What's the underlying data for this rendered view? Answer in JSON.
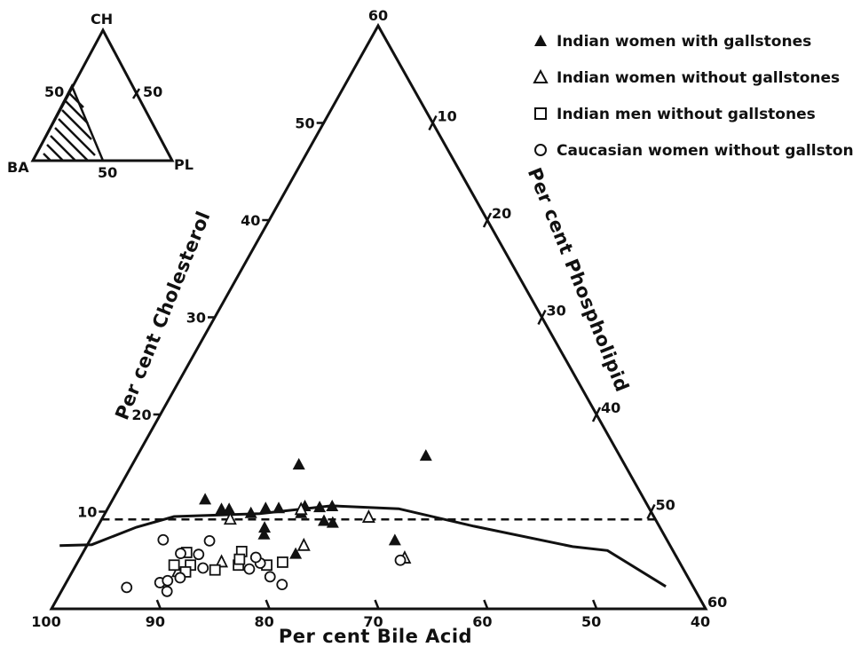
{
  "chart_data": {
    "type": "scatter",
    "subtype": "ternary-partial",
    "axes": {
      "bile_acid": {
        "label": "Per cent Bile Acid",
        "range": [
          100,
          40
        ],
        "ticks": [
          100,
          90,
          80,
          70,
          60,
          50,
          40
        ],
        "tick_labels": [
          "100",
          "90",
          "80",
          "70",
          "60",
          "50",
          "40"
        ]
      },
      "cholesterol": {
        "label": "Per cent Cholesterol",
        "range": [
          0,
          60
        ],
        "ticks": [
          10,
          20,
          30,
          40,
          50,
          60
        ],
        "tick_labels": [
          "10",
          "20",
          "30",
          "40",
          "50",
          "60"
        ]
      },
      "phospholipid": {
        "label": "Per cent Phospholipid",
        "range": [
          0,
          60
        ],
        "ticks": [
          10,
          20,
          30,
          40,
          50,
          60
        ],
        "tick_labels": [
          "10",
          "20",
          "30",
          "40",
          "50",
          "60"
        ]
      }
    },
    "series": [
      {
        "name": "Indian women with gallstones",
        "marker": "filled-triangle",
        "points": [
          {
            "ba": 80.3,
            "ch": 11.2
          },
          {
            "ba": 79.3,
            "ch": 10.2
          },
          {
            "ba": 78.6,
            "ch": 10.2
          },
          {
            "ba": 76.8,
            "ch": 9.8
          },
          {
            "ba": 76.3,
            "ch": 8.3
          },
          {
            "ba": 75.2,
            "ch": 10.3
          },
          {
            "ba": 74.0,
            "ch": 10.3
          },
          {
            "ba": 72.2,
            "ch": 9.8
          },
          {
            "ba": 71.5,
            "ch": 10.5
          },
          {
            "ba": 70.5,
            "ch": 9.0
          },
          {
            "ba": 70.2,
            "ch": 10.4
          },
          {
            "ba": 69.9,
            "ch": 14.8
          },
          {
            "ba": 69.8,
            "ch": 8.8
          },
          {
            "ba": 69.0,
            "ch": 10.5
          },
          {
            "ba": 74.8,
            "ch": 5.6
          },
          {
            "ba": 65.0,
            "ch": 7.0
          },
          {
            "ba": 57.8,
            "ch": 15.7
          },
          {
            "ba": 76.7,
            "ch": 7.6
          }
        ]
      },
      {
        "name": "Indian women without gallstones",
        "marker": "open-triangle",
        "points": [
          {
            "ba": 79.0,
            "ch": 9.2
          },
          {
            "ba": 72.0,
            "ch": 10.2
          },
          {
            "ba": 66.2,
            "ch": 9.4
          },
          {
            "ba": 73.6,
            "ch": 6.5
          },
          {
            "ba": 65.0,
            "ch": 5.2
          },
          {
            "ba": 82.0,
            "ch": 4.8
          },
          {
            "ba": 86.5,
            "ch": 3.8
          }
        ]
      },
      {
        "name": "Indian men without gallstones",
        "marker": "open-square",
        "points": [
          {
            "ba": 86.5,
            "ch": 4.5
          },
          {
            "ba": 85.0,
            "ch": 4.5
          },
          {
            "ba": 84.7,
            "ch": 5.8
          },
          {
            "ba": 83.0,
            "ch": 4.0
          },
          {
            "ba": 80.6,
            "ch": 4.5
          },
          {
            "ba": 79.6,
            "ch": 5.9
          },
          {
            "ba": 78.0,
            "ch": 4.5
          },
          {
            "ba": 76.4,
            "ch": 4.8
          },
          {
            "ba": 85.8,
            "ch": 3.8
          },
          {
            "ba": 80.2,
            "ch": 5.1
          }
        ]
      },
      {
        "name": "Caucasian women without gallstones",
        "marker": "open-circle",
        "points": [
          {
            "ba": 92.0,
            "ch": 2.2
          },
          {
            "ba": 88.7,
            "ch": 2.7
          },
          {
            "ba": 88.5,
            "ch": 1.8
          },
          {
            "ba": 87.9,
            "ch": 2.9
          },
          {
            "ba": 86.2,
            "ch": 7.1
          },
          {
            "ba": 86.6,
            "ch": 3.2
          },
          {
            "ba": 85.3,
            "ch": 5.7
          },
          {
            "ba": 84.0,
            "ch": 4.2
          },
          {
            "ba": 83.7,
            "ch": 5.6
          },
          {
            "ba": 82.0,
            "ch": 7.0
          },
          {
            "ba": 79.8,
            "ch": 4.1
          },
          {
            "ba": 78.5,
            "ch": 4.7
          },
          {
            "ba": 78.3,
            "ch": 3.3
          },
          {
            "ba": 77.6,
            "ch": 2.5
          },
          {
            "ba": 78.6,
            "ch": 5.3
          },
          {
            "ba": 65.5,
            "ch": 5.0
          }
        ]
      }
    ],
    "reference_lines": [
      {
        "style": "solid",
        "points": [
          {
            "ba": 96.0,
            "ch": 6.5
          },
          {
            "ba": 93.0,
            "ch": 6.6
          },
          {
            "ba": 88.0,
            "ch": 8.4
          },
          {
            "ba": 84.0,
            "ch": 9.5
          },
          {
            "ba": 76.0,
            "ch": 9.8
          },
          {
            "ba": 69.0,
            "ch": 10.6
          },
          {
            "ba": 63.0,
            "ch": 10.3
          },
          {
            "ba": 57.0,
            "ch": 8.5
          },
          {
            "ba": 49.0,
            "ch": 6.4
          },
          {
            "ba": 46.0,
            "ch": 6.0
          },
          {
            "ba": 42.5,
            "ch": 2.3
          }
        ]
      },
      {
        "style": "dashed",
        "cholesterol": 9.2
      }
    ]
  },
  "legend": [
    {
      "label": "Indian women with gallstones",
      "marker": "filled-triangle"
    },
    {
      "label": "Indian women without gallstones",
      "marker": "open-triangle"
    },
    {
      "label": "Indian men without gallstones",
      "marker": "open-square"
    },
    {
      "label": "Caucasian women without gallstones",
      "marker": "open-circle"
    }
  ],
  "inset": {
    "top": "CH",
    "left": "BA",
    "right": "PL",
    "left_edge_label": "50",
    "right_edge_label": "50",
    "bottom_edge_label": "50"
  }
}
